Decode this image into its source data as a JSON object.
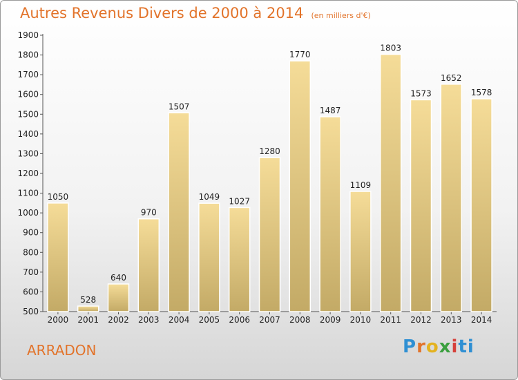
{
  "title": "Autres Revenus Divers de 2000 à 2014",
  "unit_note": "(en milliers d'€)",
  "place": "ARRADON",
  "logo_text": "Proxiti",
  "chart_data": {
    "type": "bar",
    "title": "Autres Revenus Divers de 2000 à 2014",
    "subtitle": "(en milliers d'€)",
    "categories": [
      "2000",
      "2001",
      "2002",
      "2003",
      "2004",
      "2005",
      "2006",
      "2007",
      "2008",
      "2009",
      "2010",
      "2011",
      "2012",
      "2013",
      "2014"
    ],
    "values": [
      1050,
      528,
      640,
      970,
      1507,
      1049,
      1027,
      1280,
      1770,
      1487,
      1109,
      1803,
      1573,
      1652,
      1578
    ],
    "ylim": [
      500,
      1900
    ],
    "yticks": [
      500,
      600,
      700,
      800,
      900,
      1000,
      1100,
      1200,
      1300,
      1400,
      1500,
      1600,
      1700,
      1800,
      1900
    ],
    "xlabel": "",
    "ylabel": "",
    "grid": false,
    "legend": "none",
    "colors": {
      "bar_top": "#f5dc98",
      "bar_bottom": "#c3aa66",
      "title": "#e2732a"
    }
  }
}
